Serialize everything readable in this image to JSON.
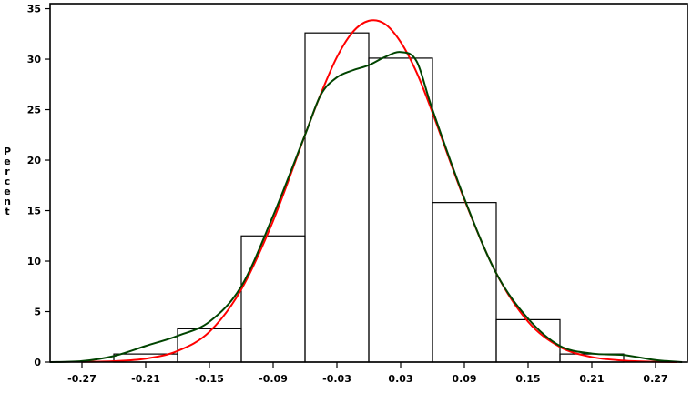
{
  "chart_data": {
    "type": "bar",
    "title": "",
    "xlabel": "",
    "ylabel": "Percent",
    "xlim": [
      -0.3,
      0.3
    ],
    "ylim": [
      0,
      35.5
    ],
    "grid": false,
    "x_ticks": [
      "-0.27",
      "-0.21",
      "-0.15",
      "-0.09",
      "-0.03",
      "0.03",
      "0.09",
      "0.15",
      "0.21",
      "0.27"
    ],
    "x_tick_values": [
      -0.27,
      -0.21,
      -0.15,
      -0.09,
      -0.03,
      0.03,
      0.09,
      0.15,
      0.21,
      0.27
    ],
    "y_ticks": [
      "0",
      "5",
      "10",
      "15",
      "20",
      "25",
      "30",
      "35"
    ],
    "y_tick_values": [
      0,
      5,
      10,
      15,
      20,
      25,
      30,
      35
    ],
    "histogram": {
      "bin_edges": [
        -0.24,
        -0.18,
        -0.12,
        -0.06,
        0.0,
        0.06,
        0.12,
        0.18,
        0.24
      ],
      "values": [
        0.8,
        3.3,
        12.5,
        32.6,
        30.1,
        15.8,
        4.2,
        0.8
      ],
      "color": "#000000"
    },
    "series": [
      {
        "type": "line",
        "color": "#ff0000",
        "x": [
          -0.27,
          -0.24,
          -0.21,
          -0.18,
          -0.15,
          -0.12,
          -0.09,
          -0.06,
          -0.045,
          -0.03,
          -0.015,
          0.0,
          0.015,
          0.03,
          0.045,
          0.06,
          0.09,
          0.12,
          0.15,
          0.18,
          0.21,
          0.24,
          0.27,
          0.29
        ],
        "y": [
          0.02,
          0.09,
          0.34,
          1.1,
          3.0,
          7.2,
          14.0,
          22.5,
          26.6,
          30.2,
          32.7,
          33.8,
          33.5,
          31.7,
          28.7,
          24.7,
          16.1,
          8.8,
          4.0,
          1.5,
          0.5,
          0.15,
          0.03,
          0.0
        ]
      },
      {
        "type": "line",
        "color": "#004400",
        "x": [
          -0.3,
          -0.27,
          -0.24,
          -0.21,
          -0.18,
          -0.15,
          -0.12,
          -0.09,
          -0.06,
          -0.045,
          -0.03,
          -0.015,
          0.0,
          0.015,
          0.03,
          0.045,
          0.06,
          0.09,
          0.12,
          0.15,
          0.18,
          0.21,
          0.24,
          0.27,
          0.295
        ],
        "y": [
          0.0,
          0.1,
          0.6,
          1.6,
          2.6,
          4.0,
          7.5,
          14.5,
          22.5,
          26.5,
          28.2,
          28.9,
          29.4,
          30.2,
          30.7,
          29.8,
          25.0,
          16.2,
          8.8,
          4.3,
          1.6,
          0.85,
          0.7,
          0.2,
          0.0
        ]
      }
    ]
  }
}
